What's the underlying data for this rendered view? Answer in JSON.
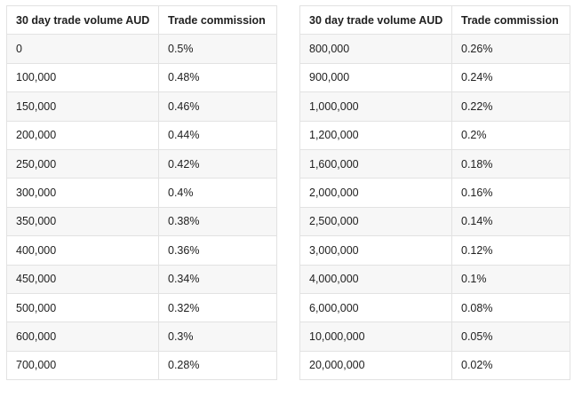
{
  "headers": {
    "volume": "30 day trade volume AUD",
    "commission": "Trade commission"
  },
  "left_rows": [
    {
      "volume": "0",
      "commission": "0.5%"
    },
    {
      "volume": "100,000",
      "commission": "0.48%"
    },
    {
      "volume": "150,000",
      "commission": "0.46%"
    },
    {
      "volume": "200,000",
      "commission": "0.44%"
    },
    {
      "volume": "250,000",
      "commission": "0.42%"
    },
    {
      "volume": "300,000",
      "commission": "0.4%"
    },
    {
      "volume": "350,000",
      "commission": "0.38%"
    },
    {
      "volume": "400,000",
      "commission": "0.36%"
    },
    {
      "volume": "450,000",
      "commission": "0.34%"
    },
    {
      "volume": "500,000",
      "commission": "0.32%"
    },
    {
      "volume": "600,000",
      "commission": "0.3%"
    },
    {
      "volume": "700,000",
      "commission": "0.28%"
    }
  ],
  "right_rows": [
    {
      "volume": "800,000",
      "commission": "0.26%"
    },
    {
      "volume": "900,000",
      "commission": "0.24%"
    },
    {
      "volume": "1,000,000",
      "commission": "0.22%"
    },
    {
      "volume": "1,200,000",
      "commission": "0.2%"
    },
    {
      "volume": "1,600,000",
      "commission": "0.18%"
    },
    {
      "volume": "2,000,000",
      "commission": "0.16%"
    },
    {
      "volume": "2,500,000",
      "commission": "0.14%"
    },
    {
      "volume": "3,000,000",
      "commission": "0.12%"
    },
    {
      "volume": "4,000,000",
      "commission": "0.1%"
    },
    {
      "volume": "6,000,000",
      "commission": "0.08%"
    },
    {
      "volume": "10,000,000",
      "commission": "0.05%"
    },
    {
      "volume": "20,000,000",
      "commission": "0.02%"
    }
  ]
}
